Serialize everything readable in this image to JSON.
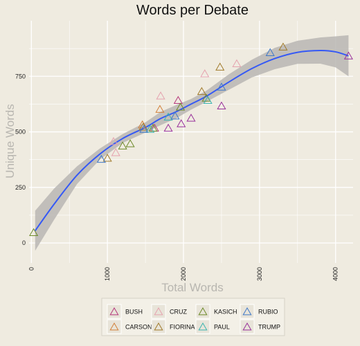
{
  "chart_data": {
    "type": "scatter",
    "title": "Words per Debate",
    "xlabel": "Total Words",
    "ylabel": "Unique Words",
    "xlim": [
      -30,
      4230
    ],
    "ylim": [
      -90,
      1000
    ],
    "x_ticks": [
      0,
      1000,
      2000,
      3000,
      4000
    ],
    "y_ticks": [
      0,
      250,
      500,
      750
    ],
    "grid": true,
    "legend_position": "bottom",
    "marker": "triangle",
    "series": [
      {
        "name": "BUSH",
        "color": "#b5367a",
        "points": [
          [
            1930,
            640
          ],
          [
            1620,
            515
          ]
        ]
      },
      {
        "name": "CARSON",
        "color": "#d2803a",
        "points": [
          [
            1690,
            600
          ],
          [
            1460,
            530
          ]
        ]
      },
      {
        "name": "CRUZ",
        "color": "#e5a2ae",
        "points": [
          [
            1080,
            455
          ],
          [
            1700,
            660
          ],
          [
            2280,
            760
          ],
          [
            2700,
            805
          ],
          [
            1110,
            405
          ]
        ]
      },
      {
        "name": "FIORINA",
        "color": "#a07a2a",
        "points": [
          [
            2240,
            680
          ],
          [
            2480,
            790
          ],
          [
            3310,
            880
          ],
          [
            1470,
            520
          ],
          [
            1000,
            380
          ]
        ]
      },
      {
        "name": "KASICH",
        "color": "#6d8a2a",
        "points": [
          [
            30,
            45
          ],
          [
            1200,
            435
          ],
          [
            1300,
            445
          ],
          [
            1600,
            515
          ],
          [
            1960,
            610
          ],
          [
            2300,
            650
          ]
        ]
      },
      {
        "name": "PAUL",
        "color": "#3ab5b0",
        "points": [
          [
            1800,
            565
          ],
          [
            2320,
            640
          ],
          [
            1560,
            510
          ]
        ]
      },
      {
        "name": "RUBIO",
        "color": "#3f78c8",
        "points": [
          [
            920,
            375
          ],
          [
            1480,
            510
          ],
          [
            1890,
            570
          ],
          [
            2500,
            700
          ],
          [
            3140,
            855
          ]
        ]
      },
      {
        "name": "TRUMP",
        "color": "#98309a",
        "points": [
          [
            1800,
            515
          ],
          [
            1970,
            535
          ],
          [
            2100,
            560
          ],
          [
            2500,
            615
          ],
          [
            4170,
            840
          ]
        ]
      }
    ],
    "smooth_curve": [
      [
        50,
        55
      ],
      [
        300,
        175
      ],
      [
        600,
        305
      ],
      [
        900,
        400
      ],
      [
        1200,
        470
      ],
      [
        1500,
        520
      ],
      [
        1700,
        560
      ],
      [
        1900,
        590
      ],
      [
        2100,
        625
      ],
      [
        2300,
        660
      ],
      [
        2600,
        725
      ],
      [
        2900,
        785
      ],
      [
        3200,
        830
      ],
      [
        3500,
        858
      ],
      [
        3800,
        866
      ],
      [
        4000,
        860
      ],
      [
        4170,
        842
      ]
    ],
    "smooth_band": {
      "upper": [
        [
          50,
          145
        ],
        [
          300,
          245
        ],
        [
          600,
          345
        ],
        [
          900,
          425
        ],
        [
          1200,
          490
        ],
        [
          1500,
          543
        ],
        [
          1700,
          590
        ],
        [
          1900,
          620
        ],
        [
          2100,
          648
        ],
        [
          2300,
          685
        ],
        [
          2600,
          760
        ],
        [
          2900,
          825
        ],
        [
          3200,
          878
        ],
        [
          3500,
          910
        ],
        [
          3800,
          925
        ],
        [
          4000,
          930
        ],
        [
          4170,
          935
        ]
      ],
      "lower": [
        [
          50,
          -35
        ],
        [
          300,
          105
        ],
        [
          600,
          265
        ],
        [
          900,
          375
        ],
        [
          1200,
          450
        ],
        [
          1500,
          497
        ],
        [
          1700,
          530
        ],
        [
          1900,
          560
        ],
        [
          2100,
          600
        ],
        [
          2300,
          635
        ],
        [
          2600,
          690
        ],
        [
          2900,
          745
        ],
        [
          3200,
          782
        ],
        [
          3500,
          806
        ],
        [
          3800,
          807
        ],
        [
          4000,
          790
        ],
        [
          4170,
          750
        ]
      ]
    },
    "colors": {
      "background": "#efebe0",
      "grid": "#ffffff",
      "curve": "#3559f5",
      "band": "#b8b6b3"
    }
  }
}
